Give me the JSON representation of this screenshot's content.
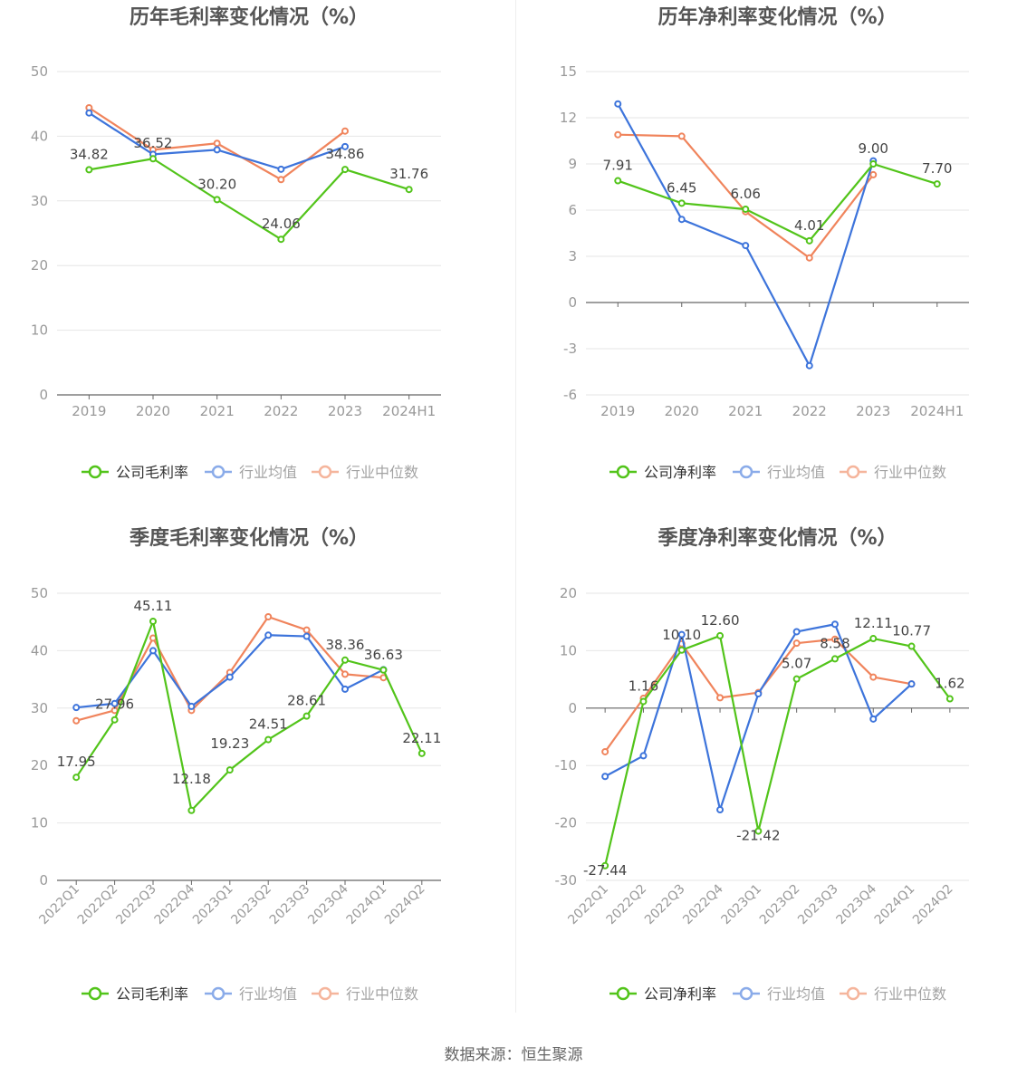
{
  "colors": {
    "company": "#52c41a",
    "avg": "#3d74db",
    "median": "#f0845c",
    "grid": "#e6e6e6",
    "axis": "#666666",
    "tick": "#999999",
    "title": "#555555",
    "label": "#444444"
  },
  "footer": {
    "source": "数据来源：恒生聚源"
  },
  "chart_data": [
    {
      "type": "line",
      "title": "历年毛利率变化情况（%）",
      "categories": [
        "2019",
        "2020",
        "2021",
        "2022",
        "2023",
        "2024H1"
      ],
      "ylim": [
        0,
        50
      ],
      "yticks": [
        0,
        10,
        20,
        30,
        40,
        50
      ],
      "ytick_labels": [
        "0",
        "10",
        "20",
        "30",
        "40",
        "50"
      ],
      "rotate_x": false,
      "legend": [
        "公司毛利率",
        "行业均值",
        "行业中位数"
      ],
      "series": [
        {
          "name": "公司毛利率",
          "role": "company",
          "values": [
            34.82,
            36.52,
            30.2,
            24.06,
            34.86,
            31.76
          ],
          "labels": [
            "34.82",
            "36.52",
            "30.20",
            "24.06",
            "34.86",
            "31.76"
          ]
        },
        {
          "name": "行业均值",
          "role": "avg",
          "values": [
            43.6,
            37.2,
            37.9,
            34.9,
            38.4,
            null
          ]
        },
        {
          "name": "行业中位数",
          "role": "median",
          "values": [
            44.4,
            37.9,
            38.9,
            33.3,
            40.8,
            null
          ]
        }
      ]
    },
    {
      "type": "line",
      "title": "历年净利率变化情况（%）",
      "categories": [
        "2019",
        "2020",
        "2021",
        "2022",
        "2023",
        "2024H1"
      ],
      "ylim": [
        -6,
        15
      ],
      "yticks": [
        -6,
        -3,
        0,
        3,
        6,
        9,
        12,
        15
      ],
      "ytick_labels": [
        "-6",
        "-3",
        "0",
        "3",
        "6",
        "9",
        "12",
        "15"
      ],
      "rotate_x": false,
      "legend": [
        "公司净利率",
        "行业均值",
        "行业中位数"
      ],
      "series": [
        {
          "name": "公司净利率",
          "role": "company",
          "values": [
            7.91,
            6.45,
            6.06,
            4.01,
            9.0,
            7.7
          ],
          "labels": [
            "7.91",
            "6.45",
            "6.06",
            "4.01",
            "9.00",
            "7.70"
          ]
        },
        {
          "name": "行业均值",
          "role": "avg",
          "values": [
            12.9,
            5.4,
            3.7,
            -4.1,
            9.2,
            null
          ]
        },
        {
          "name": "行业中位数",
          "role": "median",
          "values": [
            10.9,
            10.8,
            5.9,
            2.9,
            8.3,
            null
          ]
        }
      ]
    },
    {
      "type": "line",
      "title": "季度毛利率变化情况（%）",
      "categories": [
        "2022Q1",
        "2022Q2",
        "2022Q3",
        "2022Q4",
        "2023Q1",
        "2023Q2",
        "2023Q3",
        "2023Q4",
        "2024Q1",
        "2024Q2"
      ],
      "ylim": [
        0,
        50
      ],
      "yticks": [
        0,
        10,
        20,
        30,
        40,
        50
      ],
      "ytick_labels": [
        "0",
        "10",
        "20",
        "30",
        "40",
        "50"
      ],
      "rotate_x": true,
      "legend": [
        "公司毛利率",
        "行业均值",
        "行业中位数"
      ],
      "series": [
        {
          "name": "公司毛利率",
          "role": "company",
          "values": [
            17.95,
            27.96,
            45.11,
            12.18,
            19.23,
            24.51,
            28.61,
            38.36,
            36.63,
            22.11
          ],
          "labels": [
            "17.95",
            "27.96",
            "45.11",
            "12.18",
            "19.23",
            "24.51",
            "28.61",
            "38.36",
            "36.63",
            "22.11"
          ]
        },
        {
          "name": "行业均值",
          "role": "avg",
          "values": [
            30.1,
            30.8,
            40.0,
            30.3,
            35.4,
            42.7,
            42.5,
            33.3,
            36.7,
            null
          ]
        },
        {
          "name": "行业中位数",
          "role": "median",
          "values": [
            27.8,
            29.6,
            42.2,
            29.6,
            36.2,
            45.9,
            43.6,
            35.9,
            35.3,
            null
          ]
        }
      ]
    },
    {
      "type": "line",
      "title": "季度净利率变化情况（%）",
      "categories": [
        "2022Q1",
        "2022Q2",
        "2022Q3",
        "2022Q4",
        "2023Q1",
        "2023Q2",
        "2023Q3",
        "2023Q4",
        "2024Q1",
        "2024Q2"
      ],
      "ylim": [
        -30,
        20
      ],
      "yticks": [
        -30,
        -20,
        -10,
        0,
        10,
        20
      ],
      "ytick_labels": [
        "-30",
        "-20",
        "-10",
        "0",
        "10",
        "20"
      ],
      "rotate_x": true,
      "legend": [
        "公司净利率",
        "行业均值",
        "行业中位数"
      ],
      "series": [
        {
          "name": "公司净利率",
          "role": "company",
          "values": [
            -27.44,
            1.16,
            10.1,
            12.6,
            -21.42,
            5.07,
            8.58,
            12.11,
            10.77,
            1.62
          ],
          "labels": [
            "-27.44",
            "1.16",
            "10.10",
            "12.60",
            "-21.42",
            "5.07",
            "8.58",
            "12.11",
            "10.77",
            "1.62"
          ]
        },
        {
          "name": "行业均值",
          "role": "avg",
          "values": [
            -11.9,
            -8.3,
            12.8,
            -17.7,
            2.5,
            13.3,
            14.6,
            -1.9,
            4.2,
            null
          ]
        },
        {
          "name": "行业中位数",
          "role": "median",
          "values": [
            -7.6,
            1.7,
            11.2,
            1.8,
            2.7,
            11.3,
            12.0,
            5.4,
            4.2,
            null
          ]
        }
      ]
    }
  ]
}
